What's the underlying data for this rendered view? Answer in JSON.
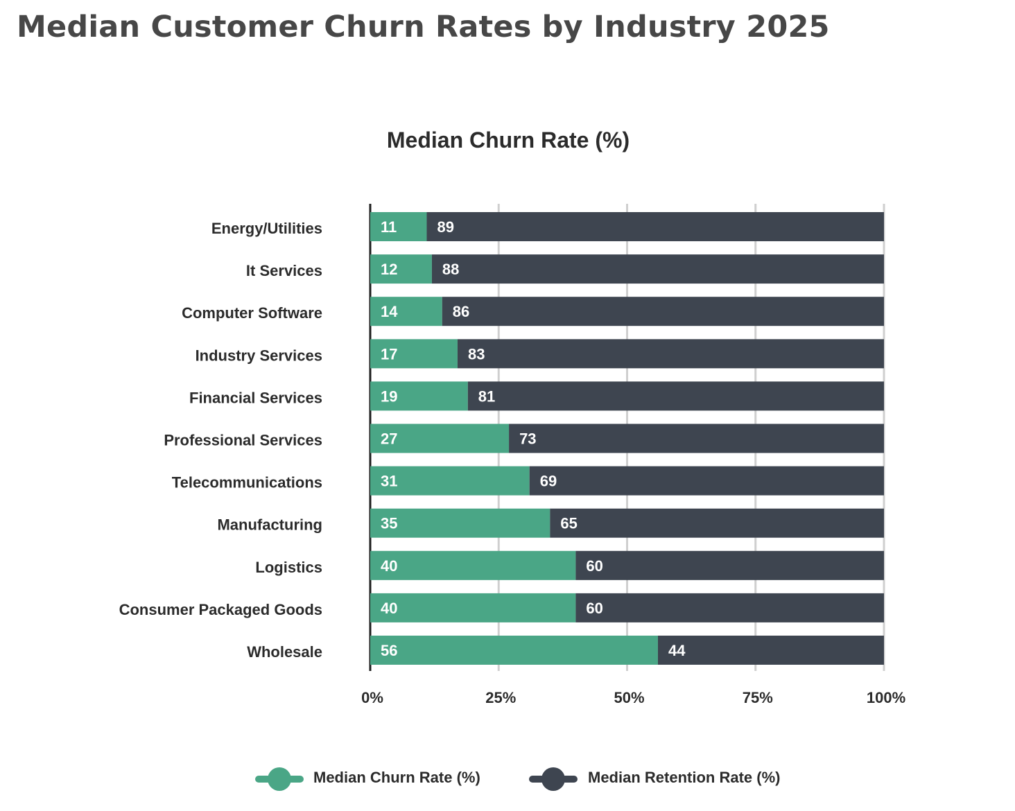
{
  "page_title": "Median Customer Churn Rates by Industry 2025",
  "chart_data": {
    "type": "bar",
    "orientation": "horizontal",
    "stacked": true,
    "title": "Median Churn Rate (%)",
    "xlabel": "",
    "ylabel": "",
    "xlim": [
      0,
      100
    ],
    "x_ticks": [
      0,
      25,
      50,
      75,
      100
    ],
    "x_tick_labels": [
      "0%",
      "25%",
      "50%",
      "75%",
      "100%"
    ],
    "grid": true,
    "legend_position": "bottom",
    "categories": [
      "Energy/Utilities",
      "It Services",
      "Computer Software",
      "Industry Services",
      "Financial Services",
      "Professional Services",
      "Telecommunications",
      "Manufacturing",
      "Logistics",
      "Consumer Packaged Goods",
      "Wholesale"
    ],
    "series": [
      {
        "name": "Median Churn Rate (%)",
        "color": "#4aa686",
        "values": [
          11,
          12,
          14,
          17,
          19,
          27,
          31,
          35,
          40,
          40,
          56
        ],
        "display_values": [
          11,
          12,
          14,
          17,
          19,
          27,
          31,
          35,
          40,
          40,
          56
        ]
      },
      {
        "name": "Median Retention Rate (%)",
        "color": "#3e4550",
        "values": [
          89,
          88,
          86,
          83,
          81,
          73,
          69,
          65,
          60,
          60,
          44
        ],
        "display_values": [
          89,
          88,
          86,
          83,
          81,
          73,
          69,
          65,
          60,
          60,
          44
        ]
      }
    ]
  }
}
